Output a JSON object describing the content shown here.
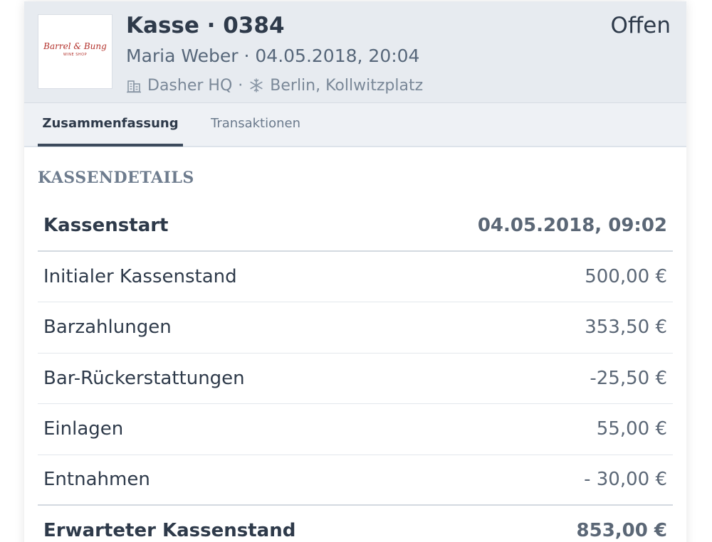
{
  "register": {
    "logo": {
      "name": "Barrel & Bung",
      "tagline": "WINE SHOP"
    },
    "title": "Kasse · 0384",
    "status": "Offen",
    "subtitle": "Maria Weber · 04.05.2018, 20:04",
    "company": "Dasher HQ",
    "separator": "·",
    "location": "Berlin, Kollwitzplatz"
  },
  "tabs": [
    {
      "label": "Zusammenfassung",
      "active": true
    },
    {
      "label": "Transaktionen",
      "active": false
    }
  ],
  "section": {
    "title": "KASSENDETAILS"
  },
  "details": [
    {
      "label": "Kassenstart",
      "value": "04.05.2018, 09:02"
    },
    {
      "label": "Initialer Kassenstand",
      "value": "500,00 €"
    },
    {
      "label": "Barzahlungen",
      "value": "353,50 €"
    },
    {
      "label": "Bar-Rückerstattungen",
      "value": "-25,50 €"
    },
    {
      "label": "Einlagen",
      "value": "55,00 €"
    },
    {
      "label": "Entnahmen",
      "value": "- 30,00 €"
    },
    {
      "label": "Erwarteter Kassenstand",
      "value": "853,00 €"
    }
  ],
  "icons": {
    "company": "building-icon",
    "location": "snowflake-icon"
  },
  "colors": {
    "header_bg": "#e7ebf0",
    "tab_indicator": "#3c4a5c",
    "logo_red": "#b3322c"
  }
}
